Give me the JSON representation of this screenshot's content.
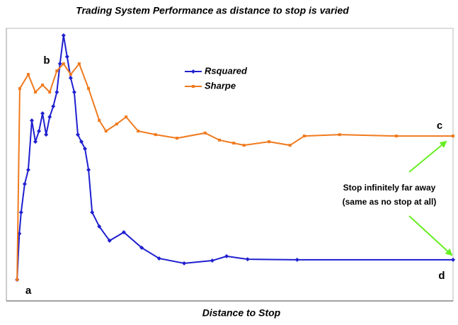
{
  "chart_data": {
    "type": "line",
    "title": "Trading System Performance  as distance to stop is varied",
    "x_label": "Distance to Stop",
    "xlim": [
      0,
      100
    ],
    "ylim": [
      0,
      100
    ],
    "legend": "top-center",
    "series": [
      {
        "name": "Rsquared",
        "color": "#1f1fd0",
        "marker": "diamond",
        "x": [
          2.4,
          2.9,
          3.3,
          4.1,
          4.9,
          5.7,
          6.5,
          7.3,
          8.1,
          8.9,
          9.7,
          10.5,
          11.3,
          12.0,
          12.8,
          13.6,
          14.4,
          15.2,
          16.0,
          16.8,
          17.6,
          18.4,
          19.2,
          20.8,
          23.1,
          26.3,
          30.3,
          34.2,
          39.8,
          46.1,
          49.3,
          54.0,
          65.1,
          100
        ],
        "values": [
          7.8,
          24.7,
          32.5,
          42.9,
          48.1,
          66.2,
          58.4,
          62.3,
          68.8,
          61.0,
          67.5,
          71.4,
          76.6,
          87.0,
          97.4,
          89.6,
          81.8,
          76.6,
          61.0,
          58.4,
          55.8,
          48.1,
          32.5,
          27.3,
          22.1,
          25.2,
          19.5,
          15.6,
          13.8,
          14.8,
          16.4,
          15.3,
          15.1,
          15.1
        ]
      },
      {
        "name": "Sharpe",
        "color": "#f07a1e",
        "marker": "square",
        "x": [
          2.4,
          3.0,
          4.9,
          6.5,
          8.1,
          9.7,
          11.3,
          12.8,
          14.4,
          16.3,
          18.4,
          20.8,
          22.3,
          24.7,
          26.8,
          29.5,
          33.4,
          38.2,
          44.5,
          47.7,
          50.9,
          53.2,
          58.8,
          63.5,
          66.7,
          74.6,
          87.3,
          100
        ],
        "values": [
          7.8,
          77.9,
          83.1,
          76.6,
          79.2,
          76.6,
          84.4,
          87.0,
          83.1,
          87.0,
          77.9,
          66.2,
          62.3,
          64.9,
          67.5,
          62.3,
          61.0,
          59.7,
          61.6,
          59.0,
          57.9,
          57.1,
          58.4,
          57.1,
          60.5,
          61.0,
          60.5,
          60.5
        ]
      }
    ],
    "annotations": [
      "a",
      "b",
      "c",
      "d"
    ],
    "note": [
      "Stop infinitely far away",
      "(same as no stop at all)"
    ]
  }
}
